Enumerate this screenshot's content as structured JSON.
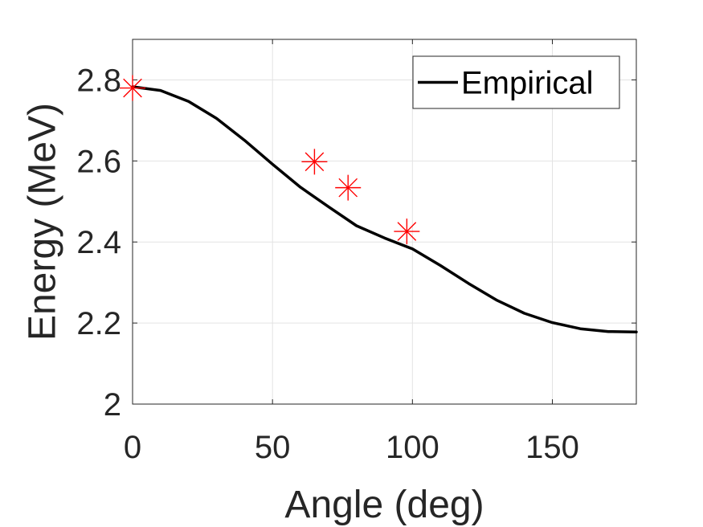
{
  "chart_data": {
    "type": "line",
    "title": "",
    "xlabel": "Angle (deg)",
    "ylabel": "Energy (MeV)",
    "xlim": [
      0,
      180
    ],
    "ylim": [
      2,
      2.9
    ],
    "xticks": [
      0,
      50,
      100,
      150
    ],
    "yticks": [
      2,
      2.2,
      2.4,
      2.6,
      2.8
    ],
    "xtick_labels": [
      "0",
      "50",
      "100",
      "150"
    ],
    "ytick_labels": [
      "2",
      "2.2",
      "2.4",
      "2.6",
      "2.8"
    ],
    "grid": true,
    "legend_position": "top-right",
    "series": [
      {
        "name": "Empirical",
        "kind": "line",
        "color": "#000000",
        "x": [
          0,
          10,
          20,
          30,
          40,
          50,
          60,
          70,
          80,
          90,
          100,
          110,
          120,
          130,
          140,
          150,
          160,
          170,
          180
        ],
        "y": [
          2.783,
          2.774,
          2.747,
          2.705,
          2.651,
          2.592,
          2.535,
          2.487,
          2.44,
          2.41,
          2.383,
          2.342,
          2.298,
          2.257,
          2.224,
          2.201,
          2.186,
          2.179,
          2.178
        ]
      },
      {
        "kind": "marker",
        "marker": "asterisk",
        "color": "#ff0000",
        "x": [
          0,
          65,
          77,
          98
        ],
        "y": [
          2.78,
          2.598,
          2.534,
          2.426
        ]
      }
    ]
  }
}
